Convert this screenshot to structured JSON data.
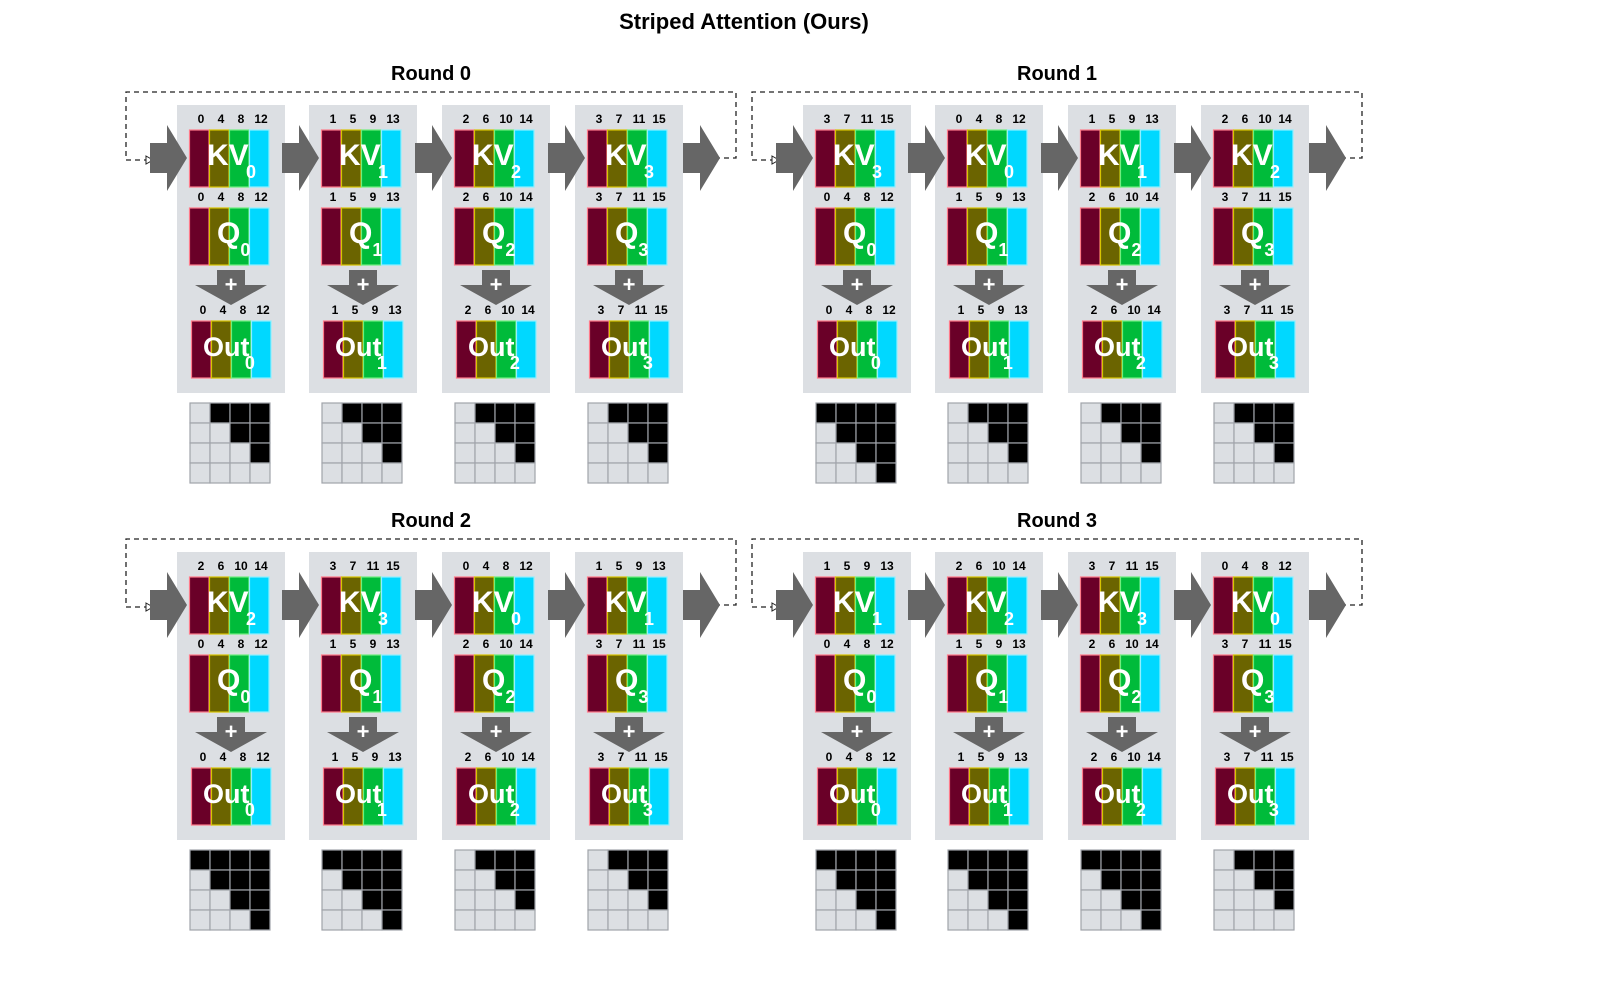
{
  "title": "Striped Attention (Ours)",
  "colors": {
    "panel": "#dcdfe3",
    "arrow": "#666666",
    "stripes": [
      "#6a0028",
      "#6b6400",
      "#00bb3a",
      "#00d8ff"
    ],
    "stripe_borders": [
      "#ff7a8a",
      "#d8c400",
      "#6fee7f",
      "#8ff0ff"
    ],
    "mask_on": "#000000",
    "mask_off": "#dcdfe3"
  },
  "labels": {
    "kv": "KV",
    "q": "Q",
    "out": "Out",
    "plus": "+"
  },
  "rounds": [
    {
      "title": "Round 0",
      "devices": [
        {
          "kv": "0",
          "kv_idx": [
            "0",
            "4",
            "8",
            "12"
          ],
          "q": "0",
          "q_idx": [
            "0",
            "4",
            "8",
            "12"
          ],
          "out": "0",
          "out_idx": [
            "0",
            "4",
            "8",
            "12"
          ],
          "mask": [
            [
              0,
              1,
              1,
              1
            ],
            [
              0,
              0,
              1,
              1
            ],
            [
              0,
              0,
              0,
              1
            ],
            [
              0,
              0,
              0,
              0
            ]
          ]
        },
        {
          "kv": "1",
          "kv_idx": [
            "1",
            "5",
            "9",
            "13"
          ],
          "q": "1",
          "q_idx": [
            "1",
            "5",
            "9",
            "13"
          ],
          "out": "1",
          "out_idx": [
            "1",
            "5",
            "9",
            "13"
          ],
          "mask": [
            [
              0,
              1,
              1,
              1
            ],
            [
              0,
              0,
              1,
              1
            ],
            [
              0,
              0,
              0,
              1
            ],
            [
              0,
              0,
              0,
              0
            ]
          ]
        },
        {
          "kv": "2",
          "kv_idx": [
            "2",
            "6",
            "10",
            "14"
          ],
          "q": "2",
          "q_idx": [
            "2",
            "6",
            "10",
            "14"
          ],
          "out": "2",
          "out_idx": [
            "2",
            "6",
            "10",
            "14"
          ],
          "mask": [
            [
              0,
              1,
              1,
              1
            ],
            [
              0,
              0,
              1,
              1
            ],
            [
              0,
              0,
              0,
              1
            ],
            [
              0,
              0,
              0,
              0
            ]
          ]
        },
        {
          "kv": "3",
          "kv_idx": [
            "3",
            "7",
            "11",
            "15"
          ],
          "q": "3",
          "q_idx": [
            "3",
            "7",
            "11",
            "15"
          ],
          "out": "3",
          "out_idx": [
            "3",
            "7",
            "11",
            "15"
          ],
          "mask": [
            [
              0,
              1,
              1,
              1
            ],
            [
              0,
              0,
              1,
              1
            ],
            [
              0,
              0,
              0,
              1
            ],
            [
              0,
              0,
              0,
              0
            ]
          ]
        }
      ]
    },
    {
      "title": "Round 1",
      "devices": [
        {
          "kv": "3",
          "kv_idx": [
            "3",
            "7",
            "11",
            "15"
          ],
          "q": "0",
          "q_idx": [
            "0",
            "4",
            "8",
            "12"
          ],
          "out": "0",
          "out_idx": [
            "0",
            "4",
            "8",
            "12"
          ],
          "mask": [
            [
              1,
              1,
              1,
              1
            ],
            [
              0,
              1,
              1,
              1
            ],
            [
              0,
              0,
              1,
              1
            ],
            [
              0,
              0,
              0,
              1
            ]
          ]
        },
        {
          "kv": "0",
          "kv_idx": [
            "0",
            "4",
            "8",
            "12"
          ],
          "q": "1",
          "q_idx": [
            "1",
            "5",
            "9",
            "13"
          ],
          "out": "1",
          "out_idx": [
            "1",
            "5",
            "9",
            "13"
          ],
          "mask": [
            [
              0,
              1,
              1,
              1
            ],
            [
              0,
              0,
              1,
              1
            ],
            [
              0,
              0,
              0,
              1
            ],
            [
              0,
              0,
              0,
              0
            ]
          ]
        },
        {
          "kv": "1",
          "kv_idx": [
            "1",
            "5",
            "9",
            "13"
          ],
          "q": "2",
          "q_idx": [
            "2",
            "6",
            "10",
            "14"
          ],
          "out": "2",
          "out_idx": [
            "2",
            "6",
            "10",
            "14"
          ],
          "mask": [
            [
              0,
              1,
              1,
              1
            ],
            [
              0,
              0,
              1,
              1
            ],
            [
              0,
              0,
              0,
              1
            ],
            [
              0,
              0,
              0,
              0
            ]
          ]
        },
        {
          "kv": "2",
          "kv_idx": [
            "2",
            "6",
            "10",
            "14"
          ],
          "q": "3",
          "q_idx": [
            "3",
            "7",
            "11",
            "15"
          ],
          "out": "3",
          "out_idx": [
            "3",
            "7",
            "11",
            "15"
          ],
          "mask": [
            [
              0,
              1,
              1,
              1
            ],
            [
              0,
              0,
              1,
              1
            ],
            [
              0,
              0,
              0,
              1
            ],
            [
              0,
              0,
              0,
              0
            ]
          ]
        }
      ]
    },
    {
      "title": "Round 2",
      "devices": [
        {
          "kv": "2",
          "kv_idx": [
            "2",
            "6",
            "10",
            "14"
          ],
          "q": "0",
          "q_idx": [
            "0",
            "4",
            "8",
            "12"
          ],
          "out": "0",
          "out_idx": [
            "0",
            "4",
            "8",
            "12"
          ],
          "mask": [
            [
              1,
              1,
              1,
              1
            ],
            [
              0,
              1,
              1,
              1
            ],
            [
              0,
              0,
              1,
              1
            ],
            [
              0,
              0,
              0,
              1
            ]
          ]
        },
        {
          "kv": "3",
          "kv_idx": [
            "3",
            "7",
            "11",
            "15"
          ],
          "q": "1",
          "q_idx": [
            "1",
            "5",
            "9",
            "13"
          ],
          "out": "1",
          "out_idx": [
            "1",
            "5",
            "9",
            "13"
          ],
          "mask": [
            [
              1,
              1,
              1,
              1
            ],
            [
              0,
              1,
              1,
              1
            ],
            [
              0,
              0,
              1,
              1
            ],
            [
              0,
              0,
              0,
              1
            ]
          ]
        },
        {
          "kv": "0",
          "kv_idx": [
            "0",
            "4",
            "8",
            "12"
          ],
          "q": "2",
          "q_idx": [
            "2",
            "6",
            "10",
            "14"
          ],
          "out": "2",
          "out_idx": [
            "2",
            "6",
            "10",
            "14"
          ],
          "mask": [
            [
              0,
              1,
              1,
              1
            ],
            [
              0,
              0,
              1,
              1
            ],
            [
              0,
              0,
              0,
              1
            ],
            [
              0,
              0,
              0,
              0
            ]
          ]
        },
        {
          "kv": "1",
          "kv_idx": [
            "1",
            "5",
            "9",
            "13"
          ],
          "q": "3",
          "q_idx": [
            "3",
            "7",
            "11",
            "15"
          ],
          "out": "3",
          "out_idx": [
            "3",
            "7",
            "11",
            "15"
          ],
          "mask": [
            [
              0,
              1,
              1,
              1
            ],
            [
              0,
              0,
              1,
              1
            ],
            [
              0,
              0,
              0,
              1
            ],
            [
              0,
              0,
              0,
              0
            ]
          ]
        }
      ]
    },
    {
      "title": "Round 3",
      "devices": [
        {
          "kv": "1",
          "kv_idx": [
            "1",
            "5",
            "9",
            "13"
          ],
          "q": "0",
          "q_idx": [
            "0",
            "4",
            "8",
            "12"
          ],
          "out": "0",
          "out_idx": [
            "0",
            "4",
            "8",
            "12"
          ],
          "mask": [
            [
              1,
              1,
              1,
              1
            ],
            [
              0,
              1,
              1,
              1
            ],
            [
              0,
              0,
              1,
              1
            ],
            [
              0,
              0,
              0,
              1
            ]
          ]
        },
        {
          "kv": "2",
          "kv_idx": [
            "2",
            "6",
            "10",
            "14"
          ],
          "q": "1",
          "q_idx": [
            "1",
            "5",
            "9",
            "13"
          ],
          "out": "1",
          "out_idx": [
            "1",
            "5",
            "9",
            "13"
          ],
          "mask": [
            [
              1,
              1,
              1,
              1
            ],
            [
              0,
              1,
              1,
              1
            ],
            [
              0,
              0,
              1,
              1
            ],
            [
              0,
              0,
              0,
              1
            ]
          ]
        },
        {
          "kv": "3",
          "kv_idx": [
            "3",
            "7",
            "11",
            "15"
          ],
          "q": "2",
          "q_idx": [
            "2",
            "6",
            "10",
            "14"
          ],
          "out": "2",
          "out_idx": [
            "2",
            "6",
            "10",
            "14"
          ],
          "mask": [
            [
              1,
              1,
              1,
              1
            ],
            [
              0,
              1,
              1,
              1
            ],
            [
              0,
              0,
              1,
              1
            ],
            [
              0,
              0,
              0,
              1
            ]
          ]
        },
        {
          "kv": "0",
          "kv_idx": [
            "0",
            "4",
            "8",
            "12"
          ],
          "q": "3",
          "q_idx": [
            "3",
            "7",
            "11",
            "15"
          ],
          "out": "3",
          "out_idx": [
            "3",
            "7",
            "11",
            "15"
          ],
          "mask": [
            [
              0,
              1,
              1,
              1
            ],
            [
              0,
              0,
              1,
              1
            ],
            [
              0,
              0,
              0,
              1
            ],
            [
              0,
              0,
              0,
              0
            ]
          ]
        }
      ]
    }
  ]
}
